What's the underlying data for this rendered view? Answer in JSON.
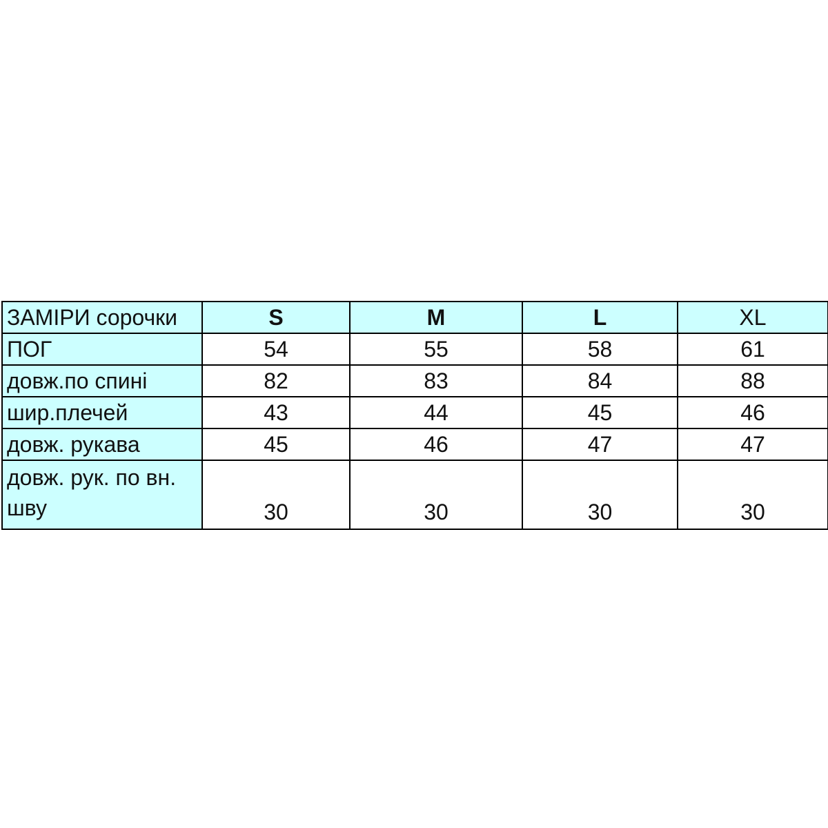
{
  "table": {
    "header": {
      "label": "ЗАМІРИ сорочки",
      "sizes": [
        "S",
        "M",
        "L",
        "XL"
      ],
      "bold": [
        true,
        true,
        true,
        false
      ]
    },
    "rows": [
      {
        "label": "ПОГ",
        "values": [
          "54",
          "55",
          "58",
          "61"
        ]
      },
      {
        "label": "довж.по спині",
        "values": [
          "82",
          "83",
          "84",
          "88"
        ]
      },
      {
        "label": "шир.плечей",
        "values": [
          "43",
          "44",
          "45",
          "46"
        ]
      },
      {
        "label": "довж. рукава",
        "values": [
          "45",
          "46",
          "47",
          "47"
        ]
      },
      {
        "label": "довж. рук. по вн. шву",
        "values": [
          "30",
          "30",
          "30",
          "30"
        ]
      }
    ],
    "colors": {
      "header_bg": "#ccffff",
      "label_bg": "#ccffff",
      "border": "#000000"
    }
  }
}
